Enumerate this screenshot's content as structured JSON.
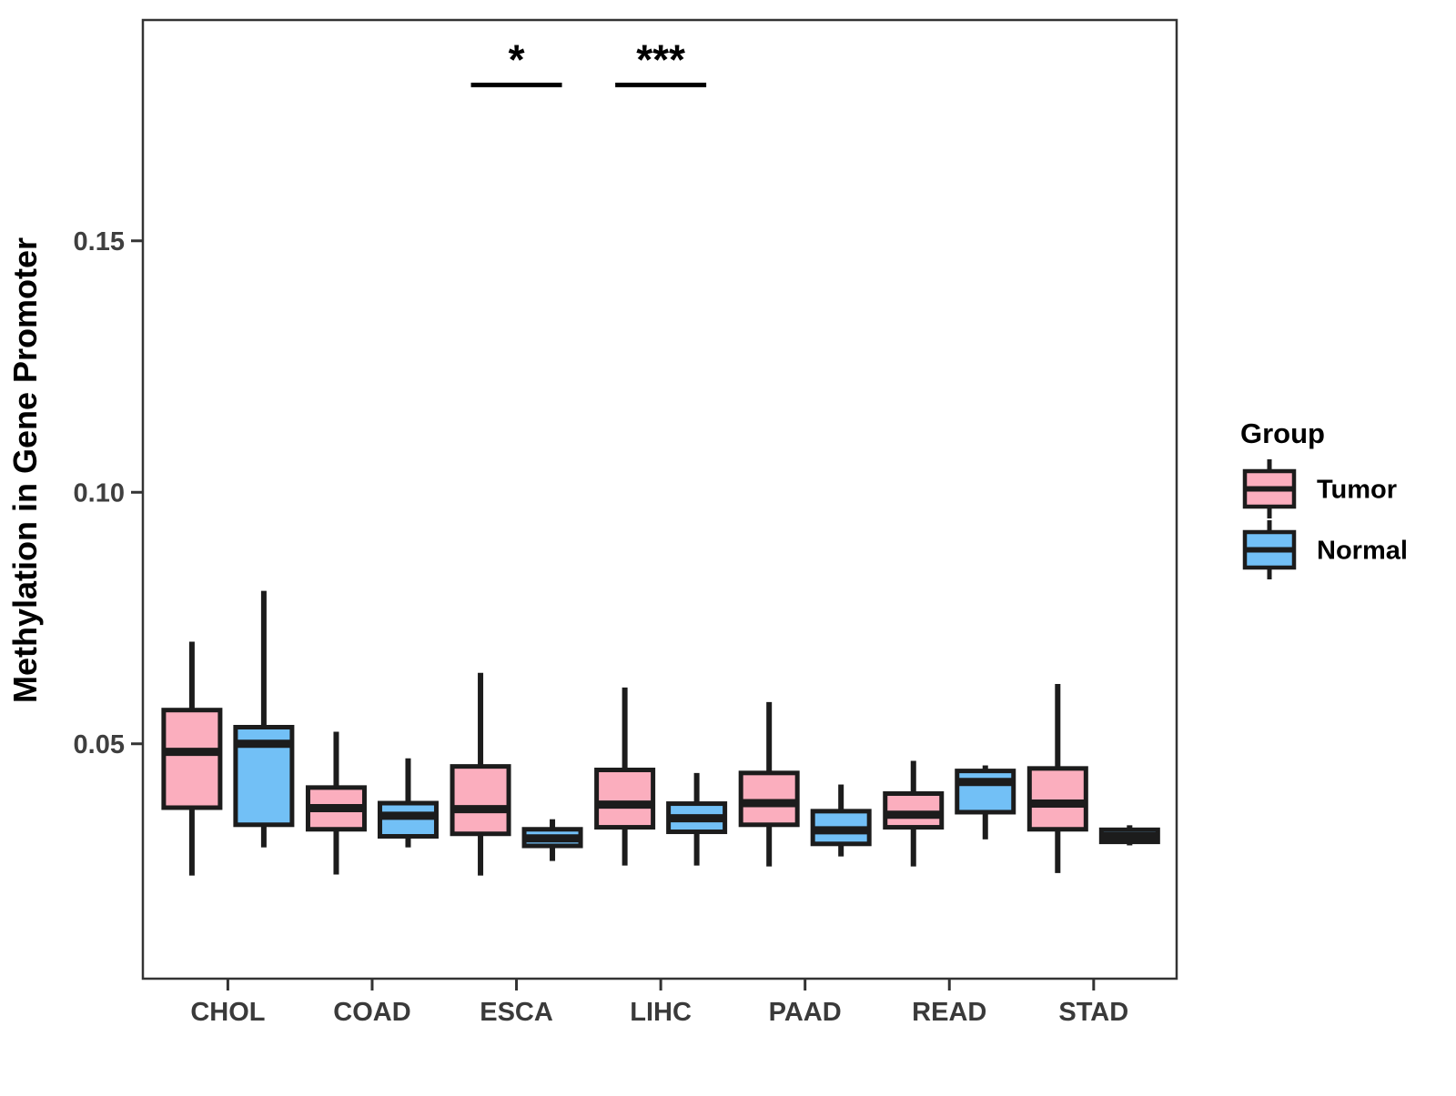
{
  "chart_data": {
    "type": "boxplot",
    "title": "",
    "xlabel": "",
    "ylabel": "Methylation in Gene Promoter",
    "legend_title": "Group",
    "legend_position": "right",
    "grid": false,
    "categories": [
      "CHOL",
      "COAD",
      "ESCA",
      "LIHC",
      "PAAD",
      "READ",
      "STAD"
    ],
    "y_ticks": [
      {
        "value": 0.05,
        "label": "0.05"
      },
      {
        "value": 0.1,
        "label": "0.10"
      },
      {
        "value": 0.15,
        "label": "0.15"
      }
    ],
    "ylim": [
      0.0033,
      0.1939
    ],
    "series": [
      {
        "name": "Tumor",
        "color": "#FBAEBE",
        "boxes": [
          {
            "min": 0.0238,
            "q1": 0.0373,
            "median": 0.0484,
            "q3": 0.0567,
            "max": 0.0703
          },
          {
            "min": 0.024,
            "q1": 0.033,
            "median": 0.0372,
            "q3": 0.0413,
            "max": 0.0524
          },
          {
            "min": 0.0238,
            "q1": 0.0321,
            "median": 0.037,
            "q3": 0.0455,
            "max": 0.0641
          },
          {
            "min": 0.0258,
            "q1": 0.0334,
            "median": 0.0379,
            "q3": 0.0448,
            "max": 0.0612
          },
          {
            "min": 0.0256,
            "q1": 0.0339,
            "median": 0.0382,
            "q3": 0.0442,
            "max": 0.0583
          },
          {
            "min": 0.0256,
            "q1": 0.0334,
            "median": 0.0359,
            "q3": 0.0401,
            "max": 0.0466
          },
          {
            "min": 0.0243,
            "q1": 0.033,
            "median": 0.0381,
            "q3": 0.0451,
            "max": 0.0619
          }
        ]
      },
      {
        "name": "Normal",
        "color": "#72C0F6",
        "boxes": [
          {
            "min": 0.0294,
            "q1": 0.0339,
            "median": 0.05,
            "q3": 0.0533,
            "max": 0.0804
          },
          {
            "min": 0.0294,
            "q1": 0.0316,
            "median": 0.0357,
            "q3": 0.0382,
            "max": 0.0471
          },
          {
            "min": 0.0267,
            "q1": 0.0297,
            "median": 0.0312,
            "q3": 0.033,
            "max": 0.035
          },
          {
            "min": 0.0258,
            "q1": 0.0325,
            "median": 0.0352,
            "q3": 0.0381,
            "max": 0.0442
          },
          {
            "min": 0.0276,
            "q1": 0.0301,
            "median": 0.0328,
            "q3": 0.0366,
            "max": 0.0419
          },
          {
            "min": 0.031,
            "q1": 0.0364,
            "median": 0.0424,
            "q3": 0.0446,
            "max": 0.0457
          },
          {
            "min": 0.0298,
            "q1": 0.0305,
            "median": 0.0316,
            "q3": 0.0329,
            "max": 0.0338
          }
        ]
      }
    ],
    "significance": [
      {
        "category": "ESCA",
        "label": "*",
        "bar_value": 0.181
      },
      {
        "category": "LIHC",
        "label": "***",
        "bar_value": 0.181
      }
    ]
  }
}
